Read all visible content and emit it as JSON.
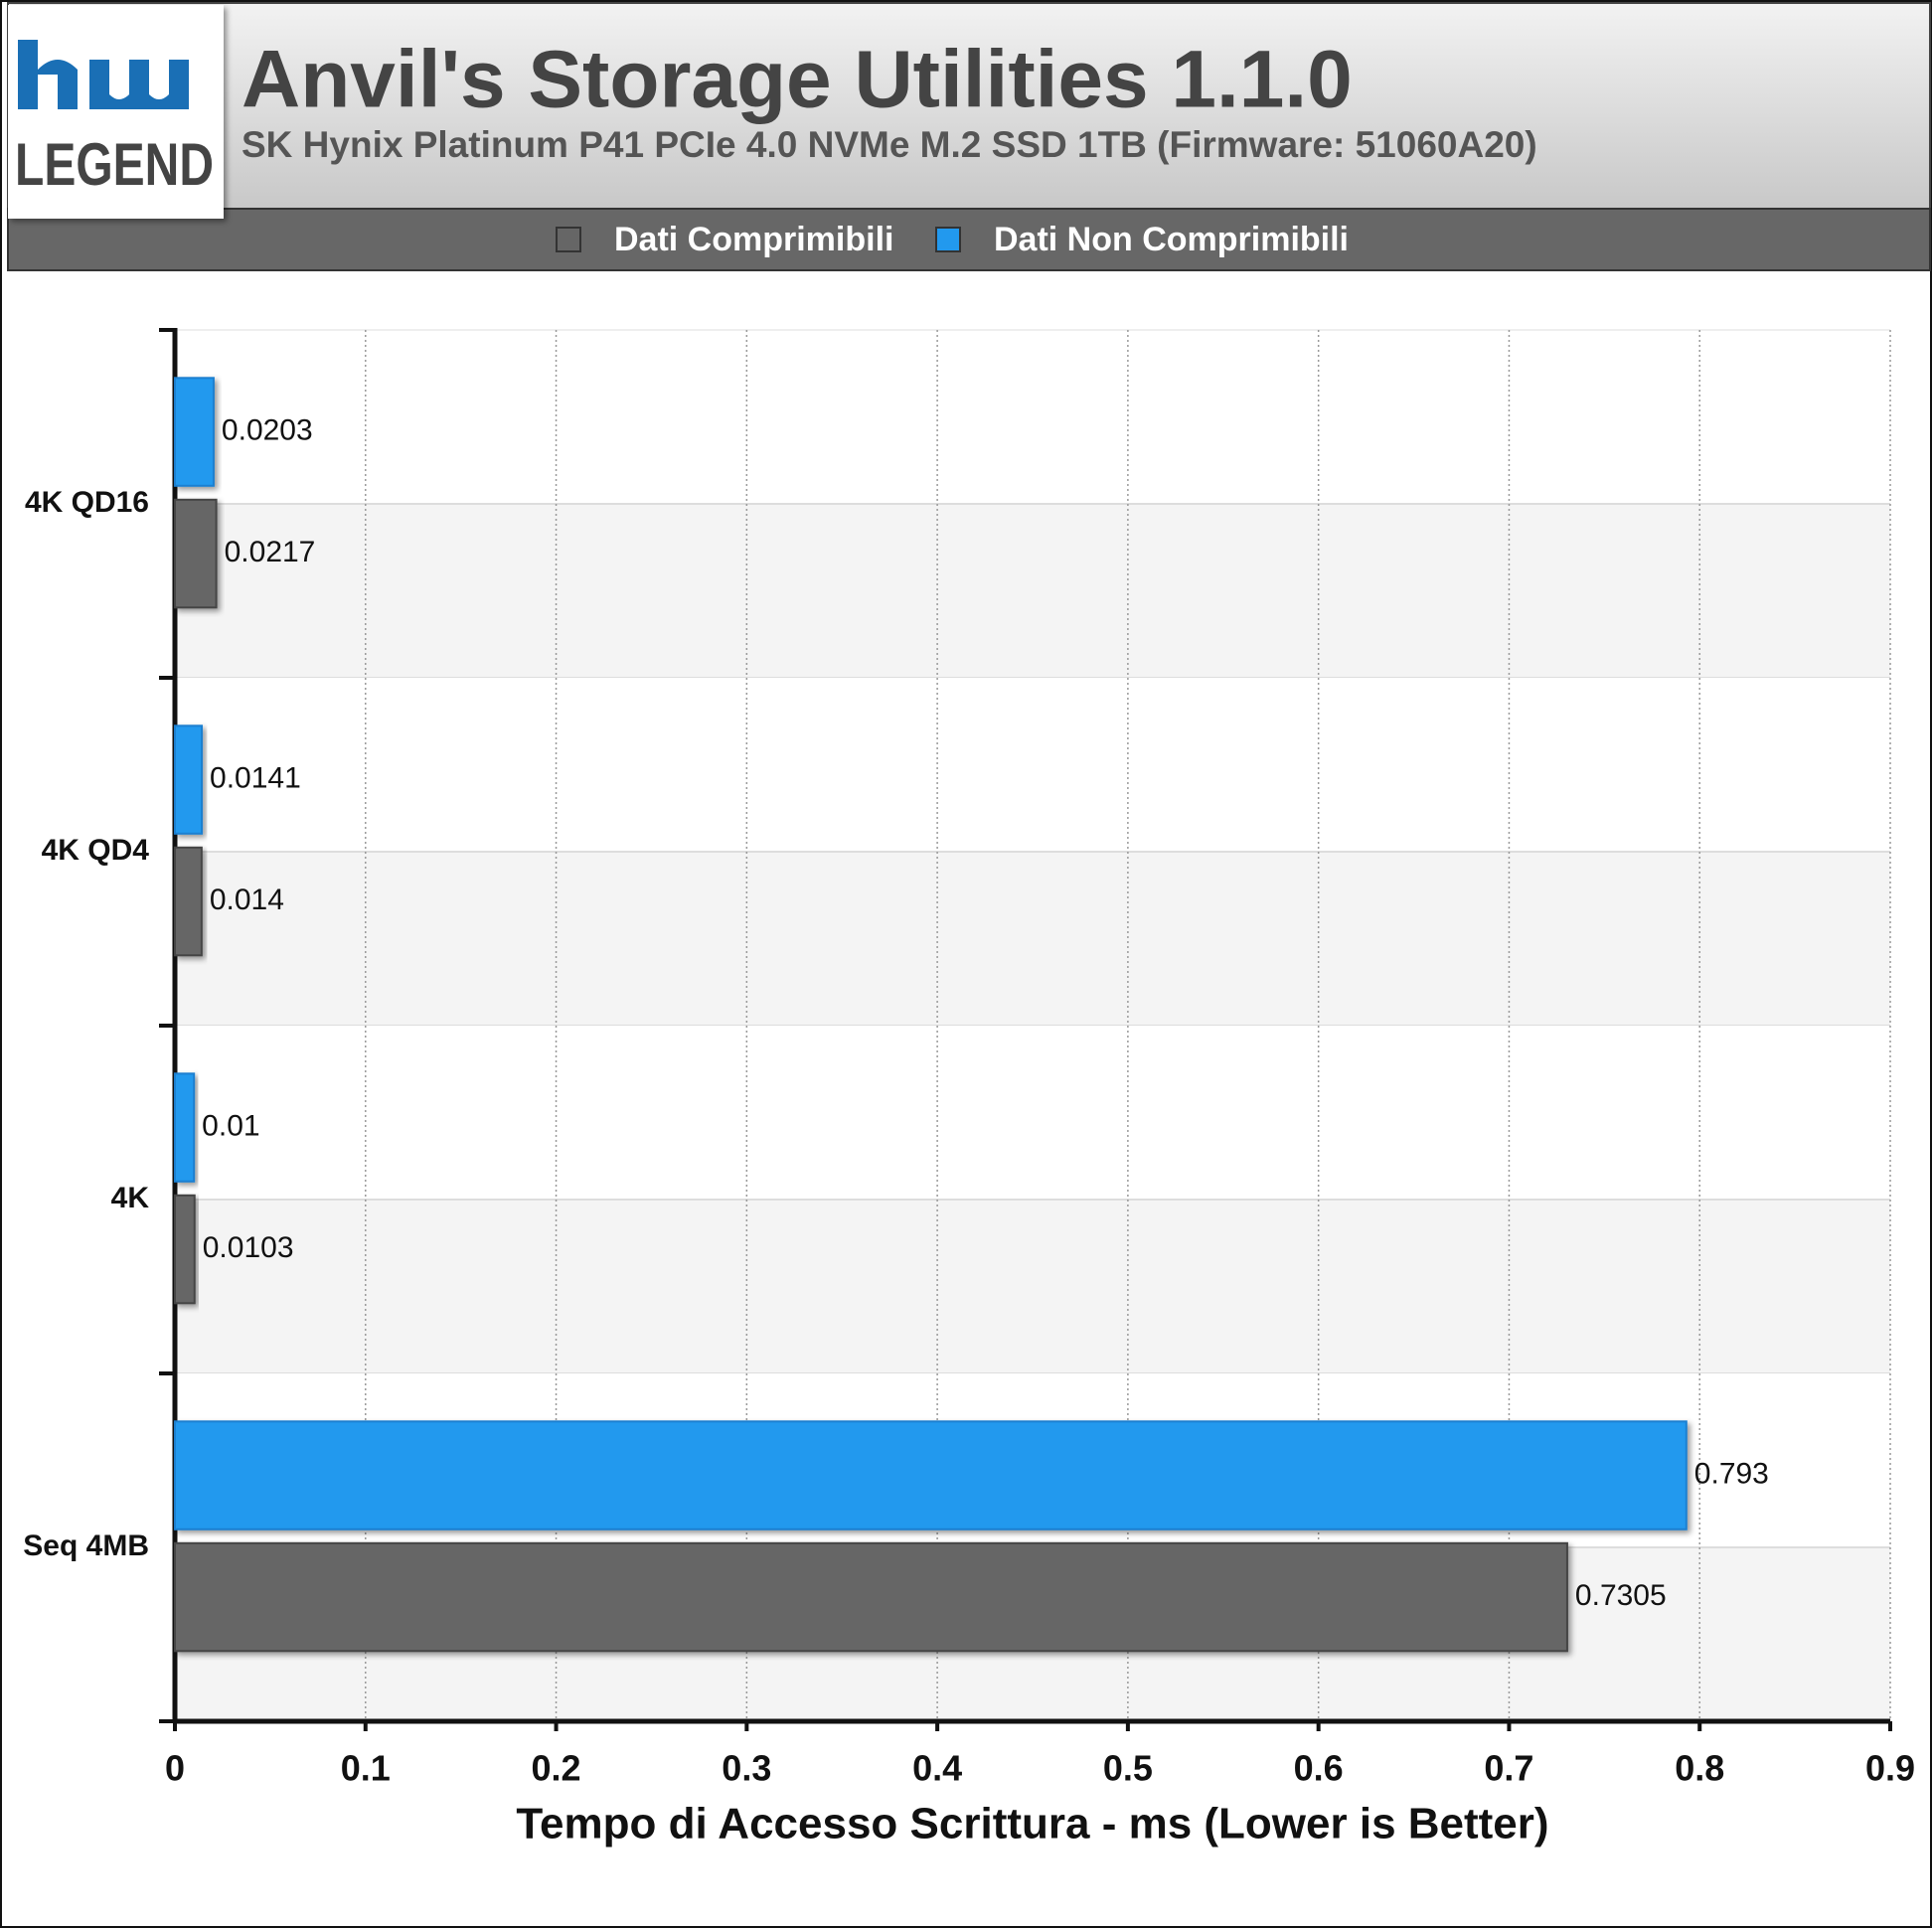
{
  "logo": "LEGEND",
  "chart_data": {
    "type": "bar",
    "orientation": "horizontal",
    "title": "Anvil's Storage Utilities 1.1.0",
    "subtitle": "SK Hynix Platinum P41 PCIe 4.0 NVMe M.2 SSD 1TB (Firmware: 51060A20)",
    "x_label": "Tempo di Accesso Scrittura - ms (Lower is Better)",
    "categories": [
      "4K QD16",
      "4K QD4",
      "4K",
      "Seq 4MB"
    ],
    "series": [
      {
        "name": "Dati Comprimibili",
        "color": "#666666",
        "values": [
          0.0217,
          0.014,
          0.0103,
          0.7305
        ]
      },
      {
        "name": "Dati Non Comprimibili",
        "color": "#2299ee",
        "values": [
          0.0203,
          0.0141,
          0.01,
          0.793
        ]
      }
    ],
    "xlim": [
      0,
      0.9
    ],
    "xticks": [
      0,
      0.1,
      0.2,
      0.3,
      0.4,
      0.5,
      0.6,
      0.7,
      0.8,
      0.9
    ],
    "grid": true,
    "legend": "top"
  }
}
